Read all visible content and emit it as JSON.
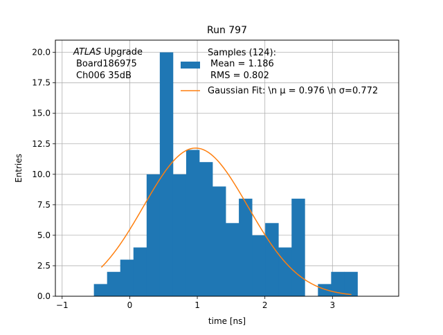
{
  "chart_data": {
    "type": "bar",
    "title": "Run 797",
    "xlabel": "time [ns]",
    "ylabel": "Entries",
    "xlim": [
      -1.1,
      3.98
    ],
    "ylim": [
      0,
      21
    ],
    "grid": true,
    "xticks": [
      -1,
      0,
      1,
      2,
      3
    ],
    "xtick_labels": [
      "−1",
      "0",
      "1",
      "2",
      "3"
    ],
    "yticks": [
      0,
      2.5,
      5,
      7.5,
      10,
      12.5,
      15,
      17.5,
      20
    ],
    "ytick_labels": [
      "0.0",
      "2.5",
      "5.0",
      "7.5",
      "10.0",
      "12.5",
      "15.0",
      "17.5",
      "20.0"
    ],
    "annotation": {
      "italic": "ATLAS",
      "line1_rest": " Upgrade",
      "line2": "Board186975",
      "line3": "Ch006 35dB"
    },
    "legend": {
      "placement": "top-right",
      "hist_lines": [
        "Samples (124):",
        "Mean = 1.186",
        "RMS = 0.802"
      ],
      "fit_text": "Gaussian Fit: \\n μ = 0.976 \\n σ=0.772",
      "hist_color": "#1f77b4",
      "fit_color": "#ff7f0e"
    },
    "histogram": {
      "name": "Samples (124):",
      "color": "#1f77b4",
      "bin_width": 0.195,
      "bin_starts": [
        -0.53,
        -0.335,
        -0.14,
        0.055,
        0.25,
        0.445,
        0.64,
        0.835,
        1.03,
        1.225,
        1.42,
        1.615,
        1.81,
        2.005,
        2.2,
        2.395,
        2.59,
        2.785,
        2.98,
        3.175
      ],
      "counts": [
        1,
        2,
        3,
        4,
        10,
        20,
        10,
        12,
        11,
        9,
        6,
        8,
        5,
        6,
        4,
        8,
        0,
        1,
        2,
        2
      ]
    },
    "fit": {
      "name": "Gaussian Fit",
      "color": "#ff7f0e",
      "mu": 0.976,
      "sigma": 0.772,
      "amplitude": 12.15,
      "x_range": [
        -0.42,
        3.28
      ]
    }
  }
}
